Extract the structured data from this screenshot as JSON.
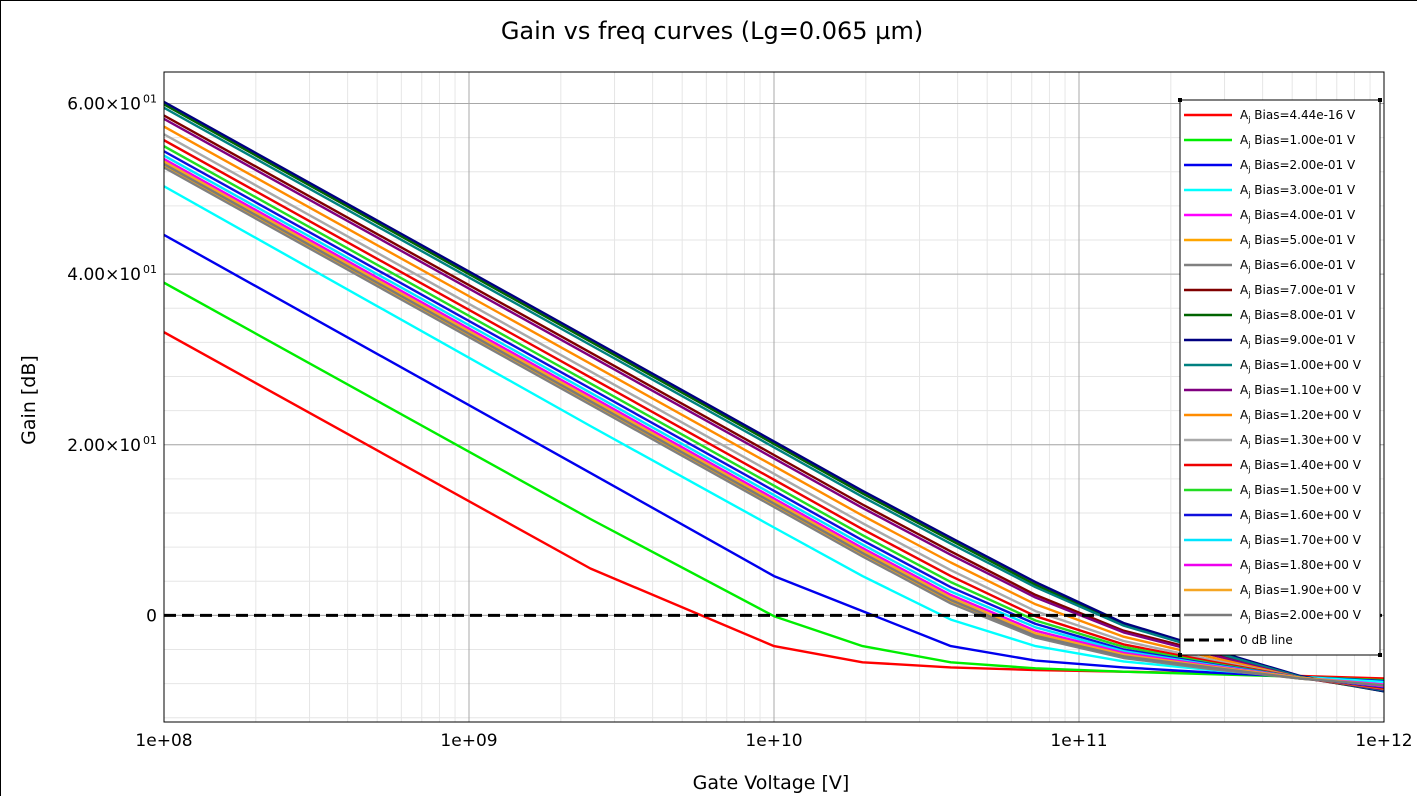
{
  "chart_data": {
    "type": "line",
    "title": "Gain vs freq curves (Lg=0.065 µm)",
    "xlabel": "Gate Voltage [V]",
    "ylabel": "Gain [dB]",
    "x_scale": "log",
    "xlim": [
      100000000,
      1000000000000
    ],
    "ylim": [
      -12.5,
      63.7
    ],
    "x_ticks": [
      {
        "value": 100000000,
        "label": "1e+08"
      },
      {
        "value": 1000000000,
        "label": "1e+09"
      },
      {
        "value": 10000000000,
        "label": "1e+10"
      },
      {
        "value": 100000000000,
        "label": "1e+11"
      },
      {
        "value": 1000000000000,
        "label": "1e+12"
      }
    ],
    "y_ticks": [
      {
        "value": 0,
        "mant": "0",
        "exp": ""
      },
      {
        "value": 20,
        "mant": "2.00×10",
        "exp": "01"
      },
      {
        "value": 40,
        "mant": "4.00×10",
        "exp": "01"
      },
      {
        "value": 60,
        "mant": "6.00×10",
        "exp": "01"
      }
    ],
    "grid": true,
    "legend_position": "right",
    "x": [
      100000000,
      2500000000,
      10000000000,
      19500000000,
      38000000000,
      72000000000,
      140000000000,
      270000000000,
      530000000000,
      1000000000000
    ],
    "series": [
      {
        "name": "A",
        "sub": "j",
        "suffix": " Bias=4.44e-16 V",
        "color": "#ff0000",
        "values": [
          33.2,
          5.5,
          -3.6,
          -5.5,
          -6.1,
          -6.4,
          -6.6,
          -6.8,
          -7.1,
          -7.4
        ]
      },
      {
        "name": "A",
        "sub": "j",
        "suffix": " Bias=1.00e-01 V",
        "color": "#00ee00",
        "values": [
          39.0,
          11.3,
          -0.1,
          -3.6,
          -5.5,
          -6.2,
          -6.6,
          -6.9,
          -7.2,
          -7.6
        ]
      },
      {
        "name": "A",
        "sub": "j",
        "suffix": " Bias=2.00e-01 V",
        "color": "#0000ee",
        "values": [
          44.6,
          16.7,
          4.6,
          0.5,
          -3.6,
          -5.3,
          -6.1,
          -6.7,
          -7.2,
          -7.7
        ]
      },
      {
        "name": "A",
        "sub": "j",
        "suffix": " Bias=3.00e-01 V",
        "color": "#00ffff",
        "values": [
          50.3,
          22.2,
          10.3,
          4.6,
          -0.5,
          -3.6,
          -5.4,
          -6.4,
          -7.2,
          -7.8
        ]
      },
      {
        "name": "A",
        "sub": "j",
        "suffix": " Bias=4.00e-01 V",
        "color": "#ff00ff",
        "values": [
          53.0,
          25.2,
          13.2,
          7.4,
          1.9,
          -2.3,
          -4.8,
          -6.1,
          -7.3,
          -8.1
        ]
      },
      {
        "name": "A",
        "sub": "j",
        "suffix": " Bias=5.00e-01 V",
        "color": "#ffa500",
        "values": [
          52.8,
          25.0,
          13.0,
          7.2,
          1.7,
          -2.4,
          -4.9,
          -6.2,
          -7.4,
          -8.2
        ]
      },
      {
        "name": "A",
        "sub": "j",
        "suffix": " Bias=6.00e-01 V",
        "color": "#808080",
        "values": [
          52.5,
          24.7,
          12.7,
          6.9,
          1.4,
          -2.6,
          -5.0,
          -6.3,
          -7.4,
          -8.3
        ]
      },
      {
        "name": "A",
        "sub": "j",
        "suffix": " Bias=7.00e-01 V",
        "color": "#800000",
        "values": [
          58.6,
          30.8,
          18.8,
          13.0,
          7.5,
          2.4,
          -1.8,
          -4.4,
          -7.3,
          -8.8
        ]
      },
      {
        "name": "A",
        "sub": "j",
        "suffix": " Bias=8.00e-01 V",
        "color": "#006400",
        "values": [
          59.9,
          32.1,
          20.1,
          14.3,
          8.8,
          3.6,
          -1.1,
          -4.1,
          -7.2,
          -8.9
        ]
      },
      {
        "name": "A",
        "sub": "j",
        "suffix": " Bias=9.00e-01 V",
        "color": "#000080",
        "values": [
          60.2,
          32.4,
          20.4,
          14.6,
          9.1,
          3.9,
          -0.9,
          -4.0,
          -7.1,
          -8.9
        ]
      },
      {
        "name": "A",
        "sub": "j",
        "suffix": " Bias=1.00e+00 V",
        "color": "#008080",
        "values": [
          59.5,
          31.7,
          19.7,
          13.9,
          8.4,
          3.3,
          -1.2,
          -4.2,
          -7.2,
          -8.8
        ]
      },
      {
        "name": "A",
        "sub": "j",
        "suffix": " Bias=1.10e+00 V",
        "color": "#800080",
        "values": [
          58.2,
          30.4,
          18.4,
          12.6,
          7.1,
          2.1,
          -2.0,
          -4.6,
          -7.3,
          -8.7
        ]
      },
      {
        "name": "A",
        "sub": "j",
        "suffix": " Bias=1.20e+00 V",
        "color": "#ff8c00",
        "values": [
          57.3,
          29.5,
          17.5,
          11.7,
          6.2,
          1.3,
          -2.5,
          -4.9,
          -7.3,
          -8.6
        ]
      },
      {
        "name": "A",
        "sub": "j",
        "suffix": " Bias=1.30e+00 V",
        "color": "#a9a9a9",
        "values": [
          56.4,
          28.6,
          16.6,
          10.8,
          5.3,
          0.5,
          -3.0,
          -5.2,
          -7.3,
          -8.5
        ]
      },
      {
        "name": "A",
        "sub": "j",
        "suffix": " Bias=1.40e+00 V",
        "color": "#ee0000",
        "values": [
          55.7,
          27.9,
          15.9,
          10.1,
          4.6,
          -0.1,
          -3.4,
          -5.4,
          -7.3,
          -8.5
        ]
      },
      {
        "name": "A",
        "sub": "j",
        "suffix": " Bias=1.50e+00 V",
        "color": "#22dd22",
        "values": [
          55.0,
          27.2,
          15.2,
          9.4,
          3.9,
          -0.6,
          -3.7,
          -5.6,
          -7.3,
          -8.4
        ]
      },
      {
        "name": "A",
        "sub": "j",
        "suffix": " Bias=1.60e+00 V",
        "color": "#1010dd",
        "values": [
          54.4,
          26.6,
          14.6,
          8.8,
          3.3,
          -1.0,
          -4.0,
          -5.7,
          -7.3,
          -8.4
        ]
      },
      {
        "name": "A",
        "sub": "j",
        "suffix": " Bias=1.70e+00 V",
        "color": "#00e5ff",
        "values": [
          53.9,
          26.1,
          14.1,
          8.3,
          2.8,
          -1.4,
          -4.2,
          -5.8,
          -7.3,
          -8.3
        ]
      },
      {
        "name": "A",
        "sub": "j",
        "suffix": " Bias=1.80e+00 V",
        "color": "#ee00ee",
        "values": [
          53.5,
          25.7,
          13.7,
          7.9,
          2.4,
          -1.8,
          -4.4,
          -5.9,
          -7.3,
          -8.3
        ]
      },
      {
        "name": "A",
        "sub": "j",
        "suffix": " Bias=1.90e+00 V",
        "color": "#f5a623",
        "values": [
          53.2,
          25.4,
          13.4,
          7.6,
          2.1,
          -2.1,
          -4.6,
          -6.0,
          -7.3,
          -8.2
        ]
      },
      {
        "name": "A",
        "sub": "j",
        "suffix": " Bias=2.00e+00 V",
        "color": "#7a7a7a",
        "values": [
          52.9,
          25.1,
          13.1,
          7.3,
          1.8,
          -2.4,
          -4.8,
          -6.1,
          -7.4,
          -8.2
        ]
      },
      {
        "name": "0 dB line",
        "sub": "",
        "suffix": "",
        "color": "#000000",
        "dashed": true,
        "values": [
          0,
          0,
          0,
          0,
          0,
          0,
          0,
          0,
          0,
          0
        ]
      }
    ]
  }
}
